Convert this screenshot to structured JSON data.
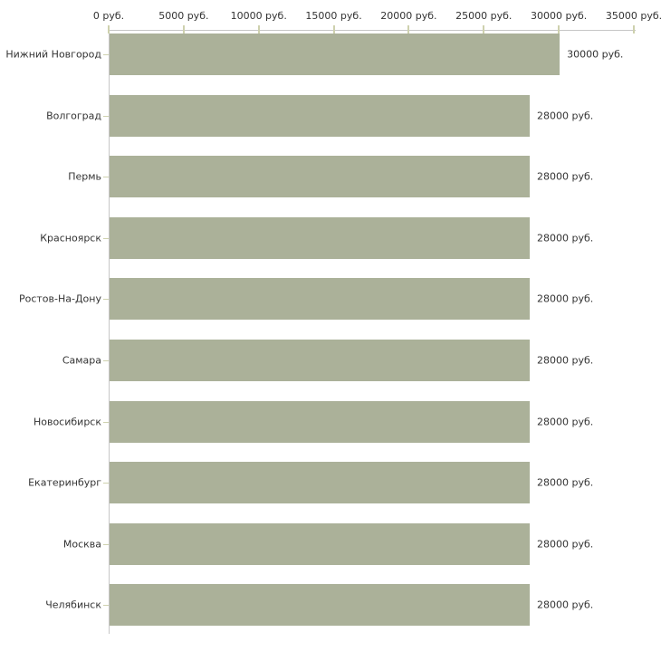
{
  "chart_data": {
    "type": "bar",
    "orientation": "horizontal",
    "title": "",
    "xlabel": "",
    "ylabel": "",
    "xlim": [
      0,
      35000
    ],
    "grid": false,
    "legend": false,
    "categories": [
      "Нижний Новгород",
      "Волгоград",
      "Пермь",
      "Красноярск",
      "Ростов-На-Дону",
      "Самара",
      "Новосибирск",
      "Екатеринбург",
      "Москва",
      "Челябинск"
    ],
    "values": [
      30000,
      28000,
      28000,
      28000,
      28000,
      28000,
      28000,
      28000,
      28000,
      28000
    ],
    "value_labels": [
      "30000 руб.",
      "28000 руб.",
      "28000 руб.",
      "28000 руб.",
      "28000 руб.",
      "28000 руб.",
      "28000 руб.",
      "28000 руб.",
      "28000 руб.",
      "28000 руб."
    ],
    "x_ticks": [
      0,
      5000,
      10000,
      15000,
      20000,
      25000,
      30000,
      35000
    ],
    "x_tick_labels": [
      "0 руб.",
      "5000 руб.",
      "10000 руб.",
      "15000 руб.",
      "20000 руб.",
      "25000 руб.",
      "30000 руб.",
      "35000 руб."
    ],
    "colors": {
      "bar": "#abb199",
      "axis_line": "#c6c6c6",
      "tick_mark": "#ced1ae",
      "text": "#333333",
      "background": "#ffffff"
    }
  }
}
